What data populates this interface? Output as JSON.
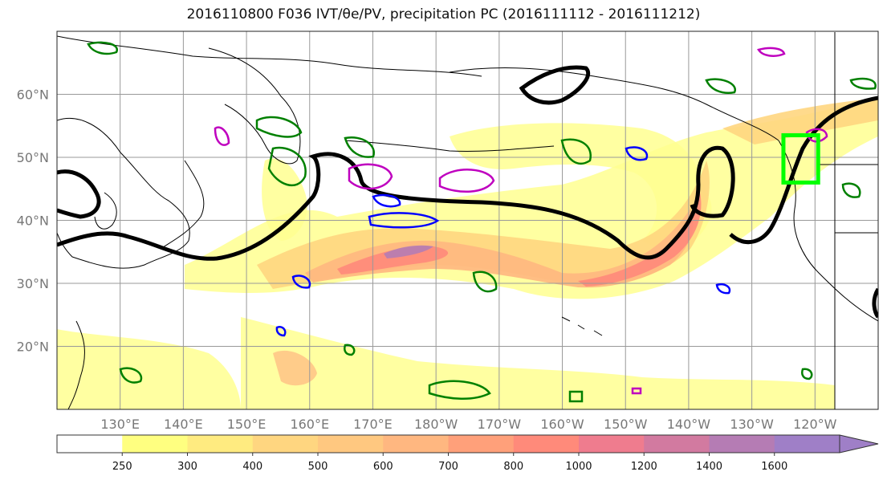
{
  "title": "2016110800 F036 IVT/θe/PV, precipitation PC (2016111112 - 2016111212)",
  "map": {
    "projection": "equirectangular",
    "lon_range_east": [
      120,
      250
    ],
    "lat_range": [
      10,
      70
    ],
    "gridlines": true,
    "lat_ticks": [
      {
        "lat": 60,
        "label": "60°N"
      },
      {
        "lat": 50,
        "label": "50°N"
      },
      {
        "lat": 40,
        "label": "40°N"
      },
      {
        "lat": 30,
        "label": "30°N"
      },
      {
        "lat": 20,
        "label": "20°N"
      }
    ],
    "lon_ticks": [
      {
        "lon": 130,
        "label": "130°E"
      },
      {
        "lon": 140,
        "label": "140°E"
      },
      {
        "lon": 150,
        "label": "150°E"
      },
      {
        "lon": 160,
        "label": "160°E"
      },
      {
        "lon": 170,
        "label": "170°E"
      },
      {
        "lon": 180,
        "label": "180°W"
      },
      {
        "lon": 190,
        "label": "170°W"
      },
      {
        "lon": 200,
        "label": "160°W"
      },
      {
        "lon": 210,
        "label": "150°W"
      },
      {
        "lon": 220,
        "label": "140°W"
      },
      {
        "lon": 230,
        "label": "130°W"
      },
      {
        "lon": 240,
        "label": "120°W"
      }
    ],
    "highlight_box": {
      "color": "#00ff00",
      "lon": [
        235,
        240.5
      ],
      "lat": [
        46,
        53.5
      ]
    }
  },
  "colorbar": {
    "levels": [
      "250",
      "300",
      "400",
      "500",
      "600",
      "700",
      "800",
      "1000",
      "1200",
      "1400",
      "1600"
    ],
    "colors": [
      "#ffffff",
      "#ffff80",
      "#ffeb80",
      "#ffd680",
      "#ffc880",
      "#ffb780",
      "#ffa07a",
      "#ff8a7a",
      "#ef7c8e",
      "#d27aa0",
      "#b57cb4",
      "#9f7fc7"
    ],
    "extend": "max"
  },
  "colors": {
    "theta_e_contour": "#000000",
    "pv_contour_green": "#008000",
    "pv_contour_blue": "#0000ff",
    "pv_contour_magenta": "#bf00bf"
  }
}
